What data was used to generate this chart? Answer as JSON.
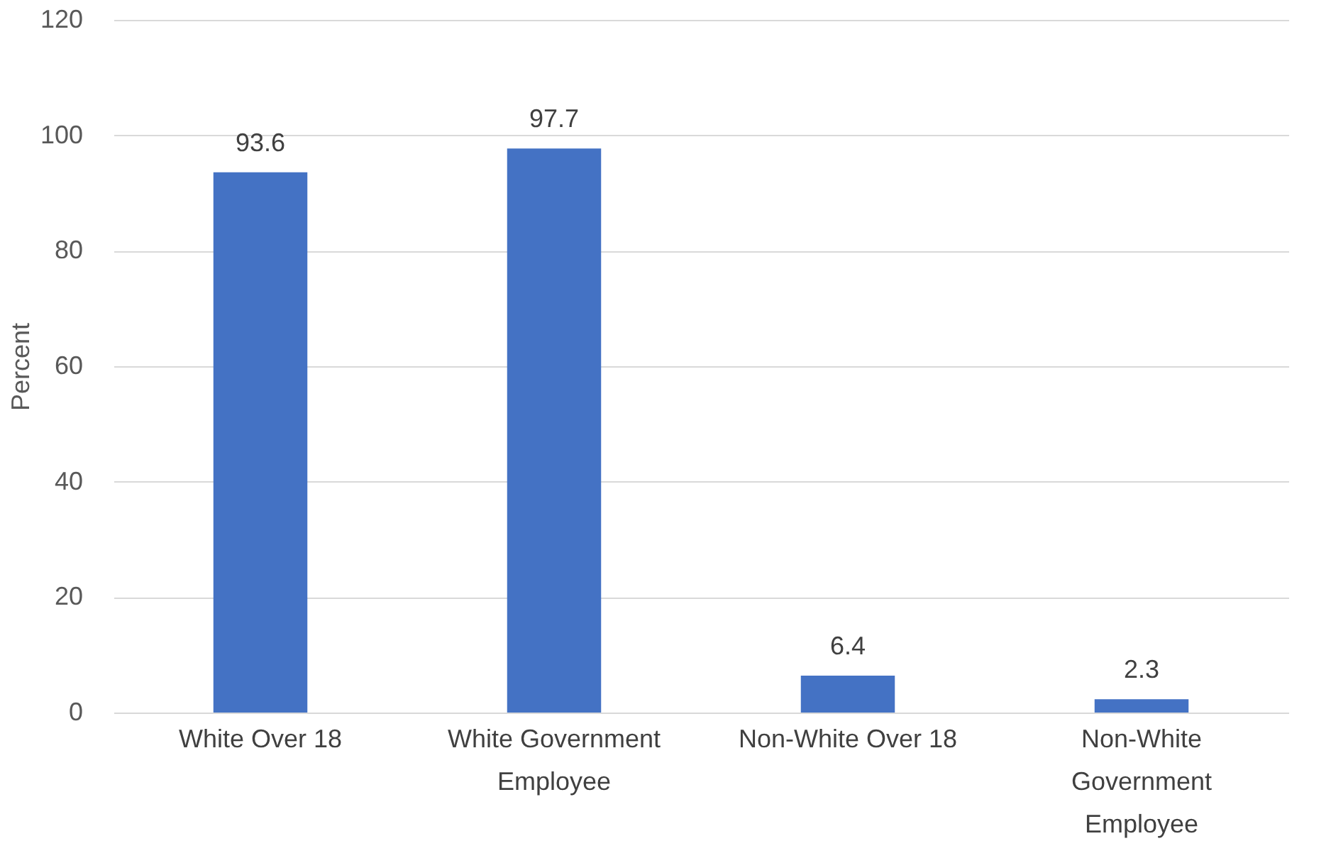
{
  "chart_data": {
    "type": "bar",
    "ylabel": "Percent",
    "categories": [
      "White Over 18",
      "White Government Employee",
      "Non-White Over 18",
      "Non-White Government Employee"
    ],
    "values": [
      93.6,
      97.7,
      6.4,
      2.3
    ],
    "color": "#4472c4",
    "ylim": [
      0,
      120
    ],
    "yticks": [
      0,
      20,
      40,
      60,
      80,
      100,
      120
    ],
    "grid": "y",
    "data_labels": true
  }
}
